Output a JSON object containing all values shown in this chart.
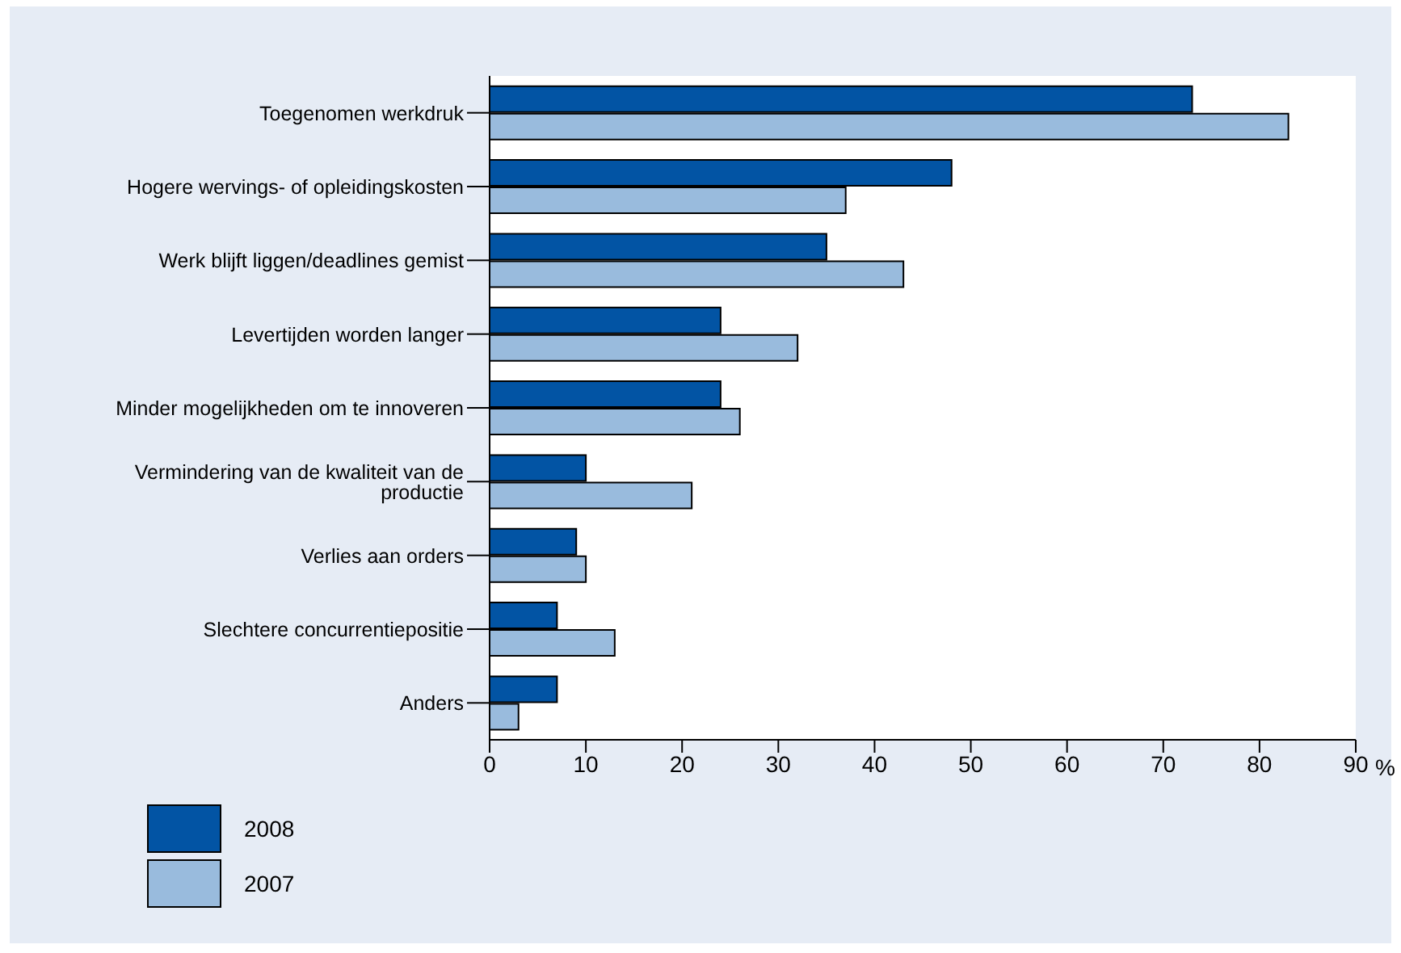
{
  "chart_data": {
    "type": "bar",
    "orientation": "horizontal",
    "xlabel": "%",
    "categories": [
      "Toegenomen werkdruk",
      "Hogere wervings- of opleidingskosten",
      "Werk blijft liggen/deadlines gemist",
      "Levertijden worden langer",
      "Minder mogelijkheden om te innoveren",
      "Vermindering van de kwaliteit van de productie",
      "Verlies aan orders",
      "Slechtere concurrentiepositie",
      "Anders"
    ],
    "series": [
      {
        "name": "2008",
        "color": "#0254a4",
        "values": [
          73,
          48,
          35,
          24,
          24,
          10,
          9,
          7,
          7
        ]
      },
      {
        "name": "2007",
        "color": "#99bbdd",
        "values": [
          83,
          37,
          43,
          32,
          26,
          21,
          10,
          13,
          3
        ]
      }
    ],
    "xlim": [
      0,
      90
    ],
    "xticks": [
      0,
      10,
      20,
      30,
      40,
      50,
      60,
      70,
      80,
      90
    ],
    "grid": false,
    "legend": "bottom"
  }
}
